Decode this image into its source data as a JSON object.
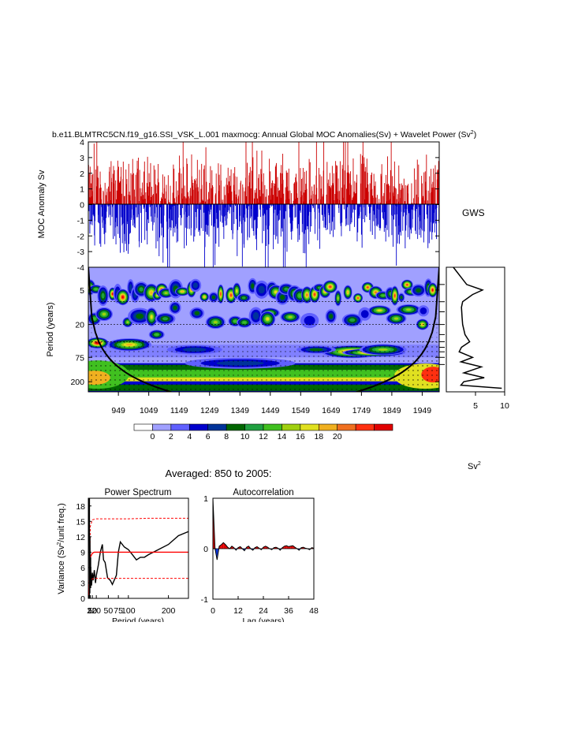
{
  "figure": {
    "title_main": "b.e11.BLMTRC5CN.f19_g16.SSI_VSK_L.001 maxmocg: Annual Global MOC Anomalies(Sv) + Wavelet Power (Sv",
    "title_sup": "2",
    "title_end": ")",
    "gws_label": "GWS",
    "units_main": "Sv",
    "units_sup": "2",
    "averaged_label": "Averaged: 850 to 2005:"
  },
  "colors": {
    "positive_bar": "#cc0000",
    "negative_bar": "#0000cc",
    "significance_line": "#ff0000",
    "colorbar": [
      "#ffffff",
      "#a0a0ff",
      "#6060ff",
      "#0000cc",
      "#003399",
      "#006600",
      "#20a040",
      "#40c020",
      "#a0d010",
      "#e0e020",
      "#f0b020",
      "#f07020",
      "#ff3010",
      "#e00000"
    ]
  },
  "chart_data": [
    {
      "id": "anomaly",
      "type": "bar",
      "title": "",
      "xlabel": "",
      "ylabel": "MOC Anomaly Sv",
      "ylim": [
        -4,
        4
      ],
      "yticks": [
        4,
        3,
        2,
        1,
        0,
        -1,
        -2,
        -3,
        -4
      ],
      "xlim": [
        850,
        2005
      ],
      "note_values": "annual anomalies 850-2005, positive red / negative blue, mostly within -4..4 Sv"
    },
    {
      "id": "wavelet",
      "type": "heatmap",
      "xlabel": "",
      "ylabel": "Period (years)",
      "xlim": [
        850,
        2005
      ],
      "xticks": [
        949,
        1049,
        1149,
        1249,
        1349,
        1449,
        1549,
        1649,
        1749,
        1849,
        1949
      ],
      "yticks": [
        5,
        20,
        75,
        200
      ],
      "colorbar_levels": [
        0,
        2,
        4,
        6,
        8,
        10,
        12,
        14,
        16,
        18,
        20
      ],
      "scale": "log period"
    },
    {
      "id": "gws",
      "type": "line",
      "title": "GWS",
      "xticks": [
        5,
        10
      ],
      "xlim": [
        0,
        10
      ],
      "period": [
        2,
        4,
        5,
        6,
        8,
        10,
        15,
        20,
        30,
        40,
        50,
        60,
        75,
        90,
        110,
        140,
        170,
        200,
        230,
        260
      ],
      "power": [
        1.2,
        3.5,
        6.2,
        4.5,
        2.8,
        2.6,
        2.7,
        2.8,
        3.2,
        4.0,
        2.6,
        2.2,
        4.5,
        2.5,
        6.0,
        3.0,
        6.5,
        3.0,
        2.5,
        9.5
      ]
    },
    {
      "id": "power_spectrum",
      "type": "line",
      "title": "Power Spectrum",
      "xlabel": "Period (years)",
      "ylabel": "Variance (Sv",
      "ylabel_sup": "2",
      "ylabel_end": "/unit freq.)",
      "xlim": [
        0,
        250
      ],
      "ylim": [
        0,
        19.5
      ],
      "yticks": [
        0,
        3,
        6,
        9,
        12,
        15,
        18
      ],
      "xtick_labels": [
        "2",
        "5",
        "10",
        "20",
        "50",
        "75",
        "100",
        "200"
      ],
      "xtick_values": [
        2,
        5,
        10,
        20,
        50,
        75,
        100,
        200
      ],
      "series": [
        {
          "x": [
            2,
            3,
            4,
            5,
            6,
            8,
            10,
            12,
            15,
            18,
            20,
            25,
            30,
            35,
            38,
            42,
            48,
            55,
            60,
            70,
            75,
            80,
            90,
            100,
            110,
            120,
            130,
            140,
            150,
            175,
            200,
            225,
            250
          ],
          "y": [
            19.5,
            1,
            12,
            3,
            6,
            2.5,
            5,
            3.5,
            5.5,
            3,
            4.5,
            6.5,
            9,
            10.5,
            7.5,
            7,
            4,
            3.5,
            2.7,
            4.5,
            9,
            11,
            10,
            9.5,
            8.5,
            7.5,
            8,
            8,
            8.5,
            9.5,
            10.5,
            12.2,
            13
          ]
        },
        {
          "x": [
            2,
            5,
            10,
            15,
            20,
            30,
            50,
            75,
            100,
            150,
            200,
            250
          ],
          "y": [
            0,
            14,
            15.3,
            15.4,
            15.5,
            15.5,
            15.5,
            15.5,
            15.5,
            15.6,
            15.6,
            15.6
          ]
        },
        {
          "x": [
            2,
            5,
            10,
            15,
            20,
            30,
            50,
            75,
            100,
            150,
            200,
            250
          ],
          "y": [
            0,
            8,
            8.8,
            9,
            9,
            9,
            9,
            9,
            9,
            9,
            9,
            9
          ]
        },
        {
          "x": [
            2,
            5,
            10,
            15,
            20,
            30,
            50,
            75,
            100,
            150,
            200,
            250
          ],
          "y": [
            0,
            3.5,
            3.8,
            3.9,
            3.9,
            3.9,
            3.9,
            3.9,
            3.9,
            3.9,
            3.9,
            3.9
          ]
        }
      ]
    },
    {
      "id": "autocorrelation",
      "type": "area",
      "title": "Autocorrelation",
      "xlabel": "Lag (years)",
      "xlim": [
        0,
        48
      ],
      "ylim": [
        -1,
        1
      ],
      "xticks": [
        0,
        12,
        24,
        36,
        48
      ],
      "yticks": [
        -1,
        0,
        1
      ],
      "lag": [
        0,
        1,
        2,
        3,
        4,
        5,
        6,
        7,
        8,
        9,
        10,
        11,
        12,
        13,
        14,
        15,
        16,
        17,
        18,
        19,
        20,
        21,
        22,
        23,
        24,
        25,
        26,
        27,
        28,
        29,
        30,
        31,
        32,
        33,
        34,
        35,
        36,
        37,
        38,
        39,
        40,
        41,
        42,
        43,
        44,
        45,
        46,
        47,
        48
      ],
      "acf": [
        1.0,
        0.0,
        -0.22,
        0.05,
        0.08,
        0.12,
        0.08,
        0.03,
        0.0,
        0.05,
        0.02,
        -0.03,
        0.02,
        0.04,
        0.0,
        -0.04,
        0.03,
        0.05,
        0.0,
        -0.03,
        0.02,
        0.04,
        0.01,
        -0.02,
        0.03,
        0.05,
        0.03,
        0.0,
        -0.02,
        0.02,
        0.03,
        0.01,
        -0.03,
        0.02,
        0.05,
        0.06,
        0.04,
        0.05,
        0.06,
        0.03,
        0.0,
        -0.03,
        0.02,
        0.03,
        0.01,
        0.0,
        -0.02,
        0.02,
        0.01
      ]
    }
  ]
}
